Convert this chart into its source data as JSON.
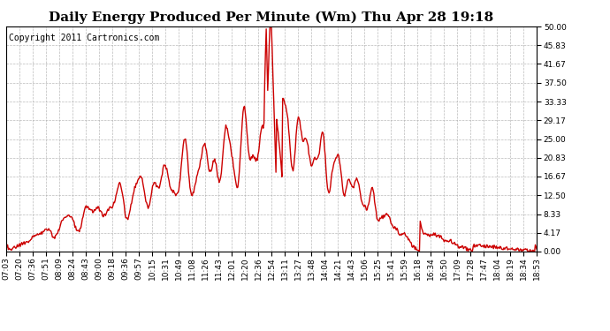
{
  "title": "Daily Energy Produced Per Minute (Wm) Thu Apr 28 19:18",
  "copyright": "Copyright 2011 Cartronics.com",
  "line_color": "#cc0000",
  "bg_color": "#ffffff",
  "plot_bg_color": "#ffffff",
  "grid_color": "#aaaaaa",
  "ylim": [
    0,
    50
  ],
  "yticks": [
    0.0,
    4.17,
    8.33,
    12.5,
    16.67,
    20.83,
    25.0,
    29.17,
    33.33,
    37.5,
    41.67,
    45.83,
    50.0
  ],
  "xtick_labels": [
    "07:03",
    "07:20",
    "07:36",
    "07:51",
    "08:09",
    "08:24",
    "08:43",
    "09:00",
    "09:18",
    "09:36",
    "09:57",
    "10:15",
    "10:31",
    "10:49",
    "11:08",
    "11:26",
    "11:43",
    "12:01",
    "12:20",
    "12:36",
    "12:54",
    "13:11",
    "13:27",
    "13:48",
    "14:04",
    "14:21",
    "14:43",
    "15:06",
    "15:25",
    "15:41",
    "15:59",
    "16:18",
    "16:34",
    "16:50",
    "17:09",
    "17:28",
    "17:47",
    "18:04",
    "18:19",
    "18:34",
    "18:53"
  ],
  "title_fontsize": 11,
  "copyright_fontsize": 7,
  "tick_fontsize": 6.5,
  "line_width": 1.0
}
